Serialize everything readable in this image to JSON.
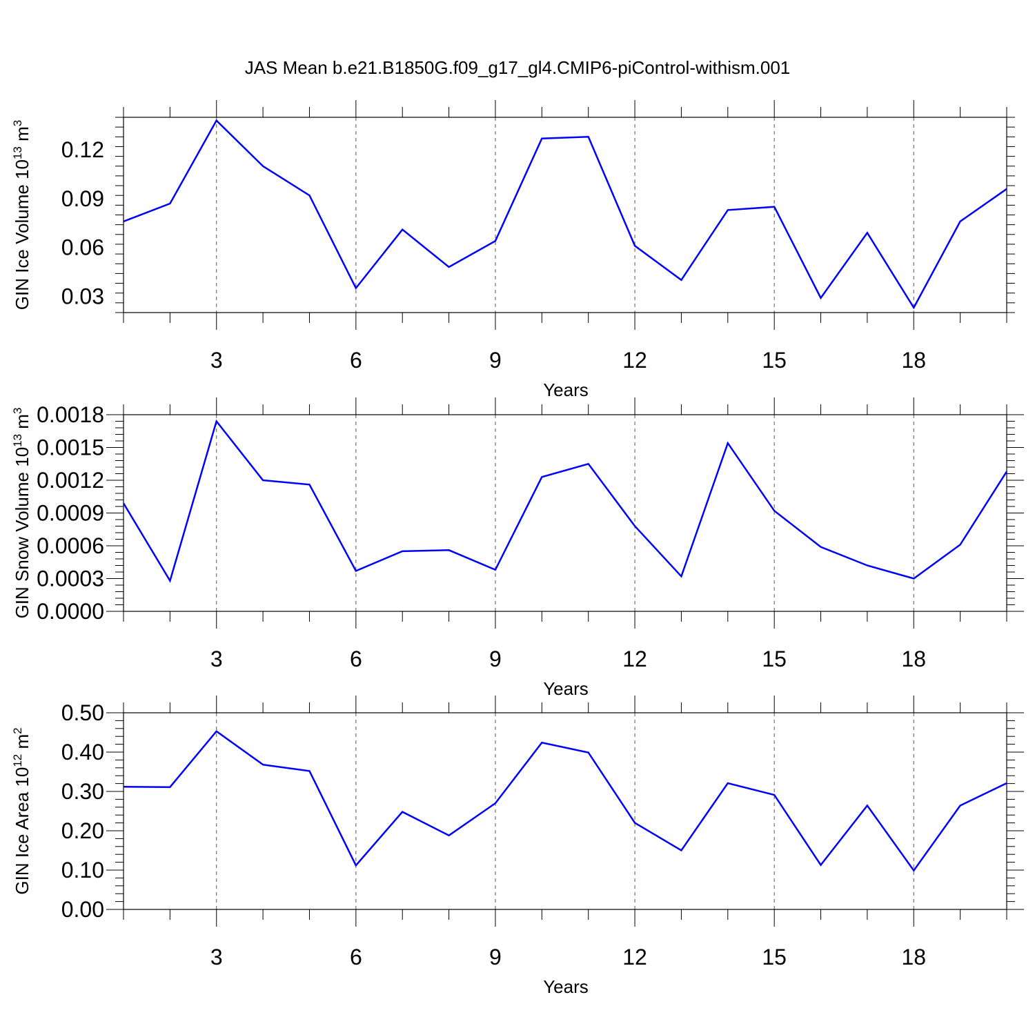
{
  "title": "JAS Mean b.e21.B1850G.f09_g17_gl4.CMIP6-piControl-withism.001",
  "colors": {
    "line": "#0000ff",
    "frame": "#000000",
    "grid": "#555555"
  },
  "chart_data": [
    {
      "type": "line",
      "ylabel_text": "GIN Ice Volume 10",
      "ylabel_exp": "13",
      "ylabel_unit": " m",
      "ylabel_unit_exp": "3",
      "xlabel": "Years",
      "xlim": [
        1,
        20
      ],
      "ylim": [
        0.02,
        0.14
      ],
      "xticks": [
        3,
        6,
        9,
        12,
        15,
        18
      ],
      "yticks": [
        0.03,
        0.06,
        0.09,
        0.12
      ],
      "ytick_labels": [
        "0.03",
        "0.06",
        "0.09",
        "0.12"
      ],
      "grid_x": true,
      "x": [
        1,
        2,
        3,
        4,
        5,
        6,
        7,
        8,
        9,
        10,
        11,
        12,
        13,
        14,
        15,
        16,
        17,
        18,
        19,
        20
      ],
      "values": [
        0.076,
        0.087,
        0.138,
        0.11,
        0.092,
        0.035,
        0.071,
        0.048,
        0.064,
        0.127,
        0.128,
        0.061,
        0.04,
        0.083,
        0.085,
        0.029,
        0.069,
        0.023,
        0.076,
        0.096
      ]
    },
    {
      "type": "line",
      "ylabel_text": "GIN Snow Volume 10",
      "ylabel_exp": "13",
      "ylabel_unit": " m",
      "ylabel_unit_exp": "3",
      "xlabel": "Years",
      "xlim": [
        1,
        20
      ],
      "ylim": [
        0,
        0.0018
      ],
      "xticks": [
        3,
        6,
        9,
        12,
        15,
        18
      ],
      "yticks": [
        0,
        0.0003,
        0.0006,
        0.0009,
        0.0012,
        0.0015,
        0.0018
      ],
      "ytick_labels": [
        "0.0000",
        "0.0003",
        "0.0006",
        "0.0009",
        "0.0012",
        "0.0015",
        "0.0018"
      ],
      "grid_x": true,
      "x": [
        1,
        2,
        3,
        4,
        5,
        6,
        7,
        8,
        9,
        10,
        11,
        12,
        13,
        14,
        15,
        16,
        17,
        18,
        19,
        20
      ],
      "values": [
        0.00099,
        0.00028,
        0.00174,
        0.0012,
        0.00116,
        0.00037,
        0.00055,
        0.00056,
        0.00038,
        0.00123,
        0.00135,
        0.00078,
        0.00032,
        0.00154,
        0.00092,
        0.00059,
        0.00042,
        0.0003,
        0.00061,
        0.00128
      ]
    },
    {
      "type": "line",
      "ylabel_text": "GIN Ice Area 10",
      "ylabel_exp": "12",
      "ylabel_unit": " m",
      "ylabel_unit_exp": "2",
      "xlabel": "Years",
      "xlim": [
        1,
        20
      ],
      "ylim": [
        0,
        0.5
      ],
      "xticks": [
        3,
        6,
        9,
        12,
        15,
        18
      ],
      "yticks": [
        0,
        0.1,
        0.2,
        0.3,
        0.4,
        0.5
      ],
      "ytick_labels": [
        "0.00",
        "0.10",
        "0.20",
        "0.30",
        "0.40",
        "0.50"
      ],
      "grid_x": true,
      "x": [
        1,
        2,
        3,
        4,
        5,
        6,
        7,
        8,
        9,
        10,
        11,
        12,
        13,
        14,
        15,
        16,
        17,
        18,
        19,
        20
      ],
      "values": [
        0.312,
        0.311,
        0.453,
        0.368,
        0.352,
        0.112,
        0.248,
        0.188,
        0.27,
        0.424,
        0.399,
        0.22,
        0.15,
        0.321,
        0.291,
        0.113,
        0.264,
        0.099,
        0.264,
        0.321
      ]
    }
  ]
}
